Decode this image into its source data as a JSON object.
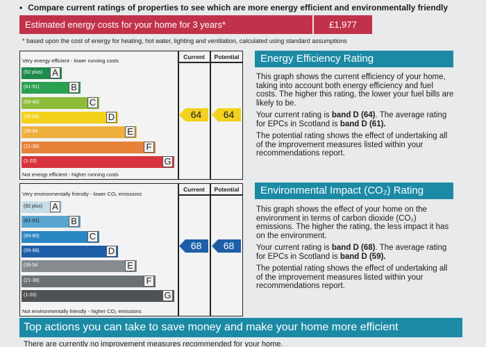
{
  "intro": "Compare current ratings of properties to see which are more energy efficient and environmentally friendly",
  "cost": {
    "label": "Estimated energy costs for your home for 3 years*",
    "value": "£1,977"
  },
  "note": "* based upon the cost of energy for heating, hot water, lighting and ventilation, calculated using standard assumptions",
  "energy_chart": {
    "top_label": "Very energy efficient - lower running costs",
    "bottom_label": "Not energy efficient - higher running costs",
    "col_current": "Current",
    "col_potential": "Potential",
    "current": "64",
    "potential": "64",
    "bands": [
      {
        "range": "(92 plus)",
        "letter": "A",
        "color": "#1f8a4c"
      },
      {
        "range": "(81-91)",
        "letter": "B",
        "color": "#2aa050"
      },
      {
        "range": "(69-80)",
        "letter": "C",
        "color": "#8cbc3a"
      },
      {
        "range": "(55-68)",
        "letter": "D",
        "color": "#f2d21a"
      },
      {
        "range": "(39-54",
        "letter": "E",
        "color": "#f0b03e"
      },
      {
        "range": "(21-38)",
        "letter": "F",
        "color": "#e6813a"
      },
      {
        "range": "(1-20)",
        "letter": "G",
        "color": "#d8333c"
      }
    ],
    "tag_color": "#f2d21a"
  },
  "env_chart": {
    "top_label": "Very environmentally friendly - lower CO₂ emissions",
    "bottom_label": "Not environmentally friendly - higher CO₂ emissions",
    "col_current": "Current",
    "col_potential": "Potential",
    "current": "68",
    "potential": "68",
    "bands": [
      {
        "range": "(92 plus)",
        "letter": "A",
        "color": "#c7dde9"
      },
      {
        "range": "(81-91)",
        "letter": "B",
        "color": "#5ba6d0"
      },
      {
        "range": "(69-80)",
        "letter": "C",
        "color": "#2b86c4"
      },
      {
        "range": "(55-68)",
        "letter": "D",
        "color": "#1c5fa8"
      },
      {
        "range": "(39-54",
        "letter": "E",
        "color": "#858b8f"
      },
      {
        "range": "(21-38)",
        "letter": "F",
        "color": "#6b7074"
      },
      {
        "range": "(1-20)",
        "letter": "G",
        "color": "#4f5356"
      }
    ],
    "tag_color": "#1c5fa8"
  },
  "energy_panel": {
    "title": "Energy Efficiency Rating",
    "p1": "This graph shows the current efficiency of your home, taking into account both energy efficiency and fuel costs. The higher this rating, the lower your fuel bills are likely to be.",
    "p2_a": "Your current rating is ",
    "p2_b": "band D (64)",
    "p2_c": ". The average rating for EPCs in Scotland is ",
    "p2_d": "band D (61).",
    "p3": "The potential rating shows the effect of undertaking all of the improvement measures listed within your recommendations report."
  },
  "env_panel": {
    "title": "Environmental Impact (CO₂) Rating",
    "p1": "This graph shows the effect of your home on the environment in terms of carbon dioxide (CO₂) emissions. The higher the rating, the less impact it has on the environment.",
    "p2_a": "Your current rating is ",
    "p2_b": "band D (68)",
    "p2_c": ". The average rating for EPCs in Scotland is ",
    "p2_d": "band D (59).",
    "p3": "The potential rating shows the effect of undertaking all of the improvement measures listed within your recommendations report."
  },
  "bottom": {
    "title": "Top actions you can take to save money and make your home more efficient",
    "note": "There are currently no improvement measures recommended for your home."
  }
}
